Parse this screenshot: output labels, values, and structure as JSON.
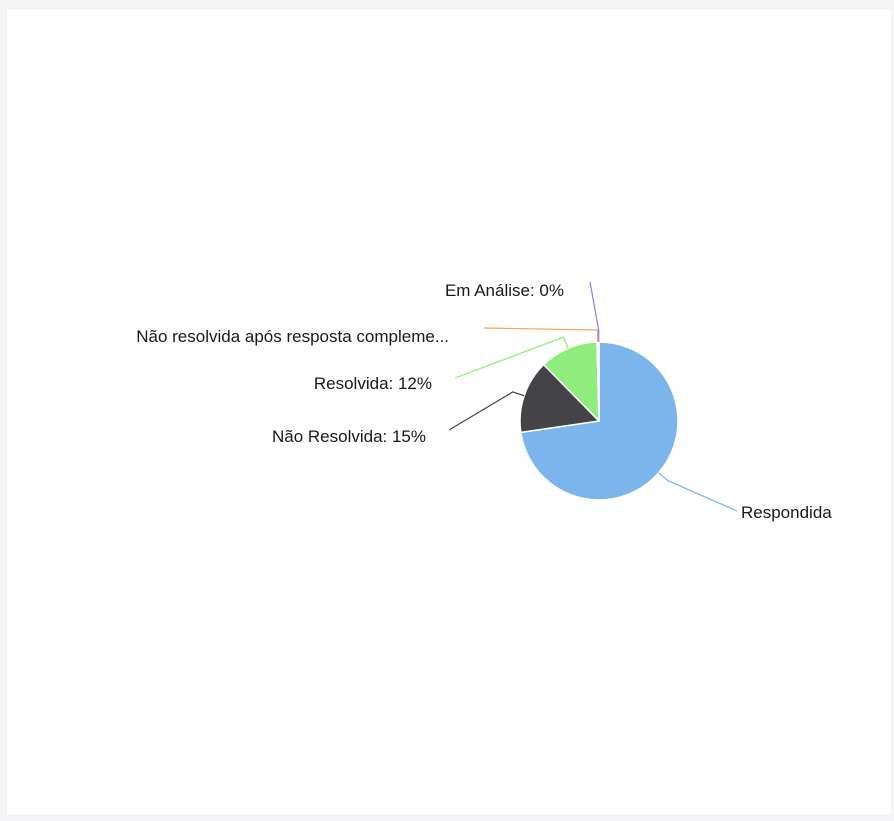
{
  "chart_data": {
    "type": "pie",
    "title": "",
    "slices": [
      {
        "label": "Respondida",
        "value": 73,
        "color": "#7cb5ec",
        "text": "Respondida"
      },
      {
        "label": "Não Resolvida",
        "value": 15,
        "color": "#434348",
        "text": "Não Resolvida: 15%"
      },
      {
        "label": "Resolvida",
        "value": 12,
        "color": "#90ed7d",
        "text": "Resolvida: 12%"
      },
      {
        "label": "Não resolvida após resposta compleme...",
        "value": 0.3,
        "color": "#f7a35c",
        "text": "Não resolvida após resposta compleme..."
      },
      {
        "label": "Em Análise",
        "value": 0.1,
        "color": "#8085e9",
        "text": "Em Análise: 0%"
      }
    ]
  }
}
